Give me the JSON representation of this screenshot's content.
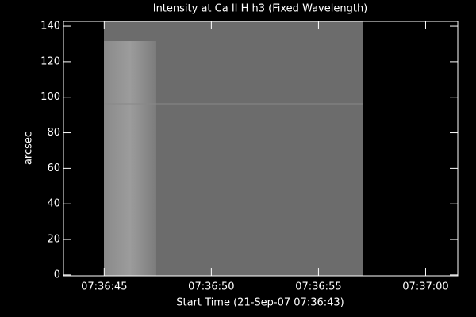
{
  "chart_data": {
    "type": "image",
    "title": "Intensity at Ca II H h3 (Fixed Wavelength)",
    "xlabel": "Start Time (21-Sep-07 07:36:43)",
    "ylabel": "arcsec",
    "xlim": [
      27403.1,
      27421.5
    ],
    "xticks": [
      {
        "value": 27405,
        "label": "07:36:45"
      },
      {
        "value": 27410,
        "label": "07:36:50"
      },
      {
        "value": 27415,
        "label": "07:36:55"
      },
      {
        "value": 27420,
        "label": "07:37:00"
      }
    ],
    "ylim": [
      -0.5,
      142.7
    ],
    "yticks": [
      0,
      20,
      40,
      60,
      80,
      100,
      120,
      140
    ],
    "color": "#ffffff"
  }
}
